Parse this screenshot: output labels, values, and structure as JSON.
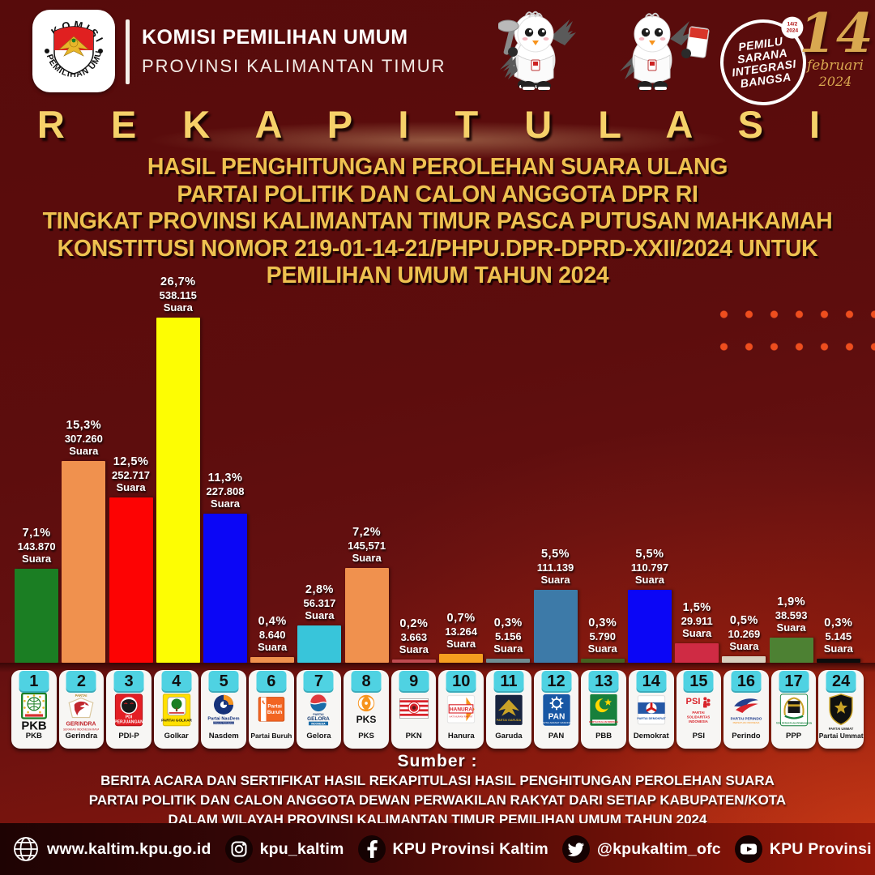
{
  "colors": {
    "background_maroon": "#5a0c0c",
    "accent_gold": "#f0c24e",
    "tab_cyan": "#4fd2e2",
    "dot_orange": "#ee4e1e",
    "label_white": "#ffffff"
  },
  "header": {
    "logo_icon": "kpu-logo",
    "logo_ring_top": "KOMISI",
    "logo_ring_bottom": "PEMILIHAN UMUM",
    "org_name": "KOMISI PEMILIHAN UMUM",
    "org_region": "PROVINSI KALIMANTAN TIMUR",
    "mascots_icon": "mascots-sura-sulu",
    "badge": {
      "lines": [
        "PEMILU",
        "SARANA",
        "INTEGRASI",
        "BANGSA"
      ],
      "mini_top": "14/2",
      "mini_bottom": "2024"
    },
    "date": {
      "day": "14",
      "month": "februari",
      "year": "2024"
    }
  },
  "title": {
    "main": "REKAPITULASI",
    "sub_lines": [
      "HASIL PENGHITUNGAN PEROLEHAN SUARA ULANG",
      "PARTAI POLITIK DAN CALON ANGGOTA DPR RI",
      "TINGKAT PROVINSI KALIMANTAN TIMUR PASCA PUTUSAN MAHKAMAH",
      "KONSTITUSI NOMOR 219-01-14-21/PHPU.DPR-DPRD-XXII/2024 UNTUK",
      "PEMILIHAN UMUM TAHUN 2024"
    ]
  },
  "chart_data": {
    "type": "bar",
    "title": "Rekapitulasi hasil penghitungan perolehan suara ulang DPR RI Kalimantan Timur 2024",
    "unit_label": "Suara",
    "ylim": [
      0,
      28
    ],
    "legend": "none",
    "grid": false,
    "categories": [
      "PKB",
      "Gerindra",
      "PDI-P",
      "Golkar",
      "Nasdem",
      "Partai Buruh",
      "Gelora",
      "PKS",
      "PKN",
      "Hanura",
      "Garuda",
      "PAN",
      "PBB",
      "Demokrat",
      "PSI",
      "Perindo",
      "PPP",
      "Partai Ummat"
    ],
    "series": [
      {
        "name": "Perolehan Suara (%)",
        "values": [
          7.1,
          15.3,
          12.5,
          26.7,
          11.3,
          0.4,
          2.8,
          7.2,
          0.2,
          0.7,
          0.3,
          5.5,
          0.3,
          5.5,
          1.5,
          0.5,
          1.9,
          0.3
        ]
      }
    ],
    "bars": [
      {
        "number": "1",
        "party": "PKB",
        "pct_label": "7,1%",
        "value_pct": 7.1,
        "votes_label": "143.870",
        "votes": 143870,
        "unit": "Suara",
        "color": "#1b7e23",
        "logo_icon": "pkb-logo"
      },
      {
        "number": "2",
        "party": "Gerindra",
        "pct_label": "15,3%",
        "value_pct": 15.3,
        "votes_label": "307.260",
        "votes": 307260,
        "unit": "Suara",
        "color": "#f0914e",
        "logo_icon": "gerindra-logo"
      },
      {
        "number": "3",
        "party": "PDI-P",
        "pct_label": "12,5%",
        "value_pct": 12.5,
        "votes_label": "252.717",
        "votes": 252717,
        "unit": "Suara",
        "color": "#fd0303",
        "logo_icon": "pdip-logo"
      },
      {
        "number": "4",
        "party": "Golkar",
        "pct_label": "26,7%",
        "value_pct": 26.7,
        "votes_label": "538.115",
        "votes": 538115,
        "unit": "Suara",
        "color": "#fdfd03",
        "logo_icon": "golkar-logo"
      },
      {
        "number": "5",
        "party": "Nasdem",
        "pct_label": "11,3%",
        "value_pct": 11.3,
        "votes_label": "227.808",
        "votes": 227808,
        "unit": "Suara",
        "color": "#0b06f6",
        "logo_icon": "nasdem-logo"
      },
      {
        "number": "6",
        "party": "Partai Buruh",
        "pct_label": "0,4%",
        "value_pct": 0.4,
        "votes_label": "8.640",
        "votes": 8640,
        "unit": "Suara",
        "color": "#f0914e",
        "logo_icon": "buruh-logo"
      },
      {
        "number": "7",
        "party": "Gelora",
        "pct_label": "2,8%",
        "value_pct": 2.8,
        "votes_label": "56.317",
        "votes": 56317,
        "unit": "Suara",
        "color": "#38c5da",
        "logo_icon": "gelora-logo"
      },
      {
        "number": "8",
        "party": "PKS",
        "pct_label": "7,2%",
        "value_pct": 7.2,
        "votes_label": "145,571",
        "votes": 145571,
        "unit": "Suara",
        "color": "#f0914e",
        "logo_icon": "pks-logo"
      },
      {
        "number": "9",
        "party": "PKN",
        "pct_label": "0,2%",
        "value_pct": 0.2,
        "votes_label": "3.663",
        "votes": 3663,
        "unit": "Suara",
        "color": "#c04a50",
        "logo_icon": "pkn-logo"
      },
      {
        "number": "10",
        "party": "Hanura",
        "pct_label": "0,7%",
        "value_pct": 0.7,
        "votes_label": "13.264",
        "votes": 13264,
        "unit": "Suara",
        "color": "#f59d1f",
        "logo_icon": "hanura-logo"
      },
      {
        "number": "11",
        "party": "Garuda",
        "pct_label": "0,3%",
        "value_pct": 0.3,
        "votes_label": "5.156",
        "votes": 5156,
        "unit": "Suara",
        "color": "#6f8d92",
        "logo_icon": "garuda-logo"
      },
      {
        "number": "12",
        "party": "PAN",
        "pct_label": "5,5%",
        "value_pct": 5.5,
        "votes_label": "111.139",
        "votes": 111139,
        "unit": "Suara",
        "color": "#3d7aa8",
        "logo_icon": "pan-logo"
      },
      {
        "number": "13",
        "party": "PBB",
        "pct_label": "0,3%",
        "value_pct": 0.3,
        "votes_label": "5.790",
        "votes": 5790,
        "unit": "Suara",
        "color": "#44611f",
        "logo_icon": "pbb-logo"
      },
      {
        "number": "14",
        "party": "Demokrat",
        "pct_label": "5,5%",
        "value_pct": 5.5,
        "votes_label": "110.797",
        "votes": 110797,
        "unit": "Suara",
        "color": "#0b06f6",
        "logo_icon": "demokrat-logo"
      },
      {
        "number": "15",
        "party": "PSI",
        "pct_label": "1,5%",
        "value_pct": 1.5,
        "votes_label": "29.911",
        "votes": 29911,
        "unit": "Suara",
        "color": "#cf2b44",
        "logo_icon": "psi-logo"
      },
      {
        "number": "16",
        "party": "Perindo",
        "pct_label": "0,5%",
        "value_pct": 0.5,
        "votes_label": "10.269",
        "votes": 10269,
        "unit": "Suara",
        "color": "#d9d0bf",
        "logo_icon": "perindo-logo"
      },
      {
        "number": "17",
        "party": "PPP",
        "pct_label": "1,9%",
        "value_pct": 1.9,
        "votes_label": "38.593",
        "votes": 38593,
        "unit": "Suara",
        "color": "#4d8133",
        "logo_icon": "ppp-logo"
      },
      {
        "number": "24",
        "party": "Partai Ummat",
        "pct_label": "0,3%",
        "value_pct": 0.3,
        "votes_label": "5.145",
        "votes": 5145,
        "unit": "Suara",
        "color": "#0c0c0c",
        "logo_icon": "ummat-logo"
      }
    ]
  },
  "source": {
    "label": "Sumber :",
    "lines": [
      "BERITA ACARA DAN SERTIFIKAT HASIL REKAPITULASI HASIL PENGHITUNGAN PEROLEHAN SUARA",
      "PARTAI POLITIK DAN CALON ANGGOTA DEWAN PERWAKILAN RAKYAT DARI SETIAP KABUPATEN/KOTA",
      "DALAM WILAYAH PROVINSI KALIMANTAN TIMUR PEMILIHAN UMUM TAHUN 2024"
    ]
  },
  "footer": {
    "items": [
      {
        "icon": "globe-icon",
        "label": "www.kaltim.kpu.go.id"
      },
      {
        "icon": "instagram-icon",
        "label": "kpu_kaltim"
      },
      {
        "icon": "facebook-icon",
        "label": "KPU Provinsi Kaltim"
      },
      {
        "icon": "twitter-icon",
        "label": "@kpukaltim_ofc"
      },
      {
        "icon": "youtube-icon",
        "label": "KPU Provinsi Kalimantan Timur"
      }
    ]
  }
}
